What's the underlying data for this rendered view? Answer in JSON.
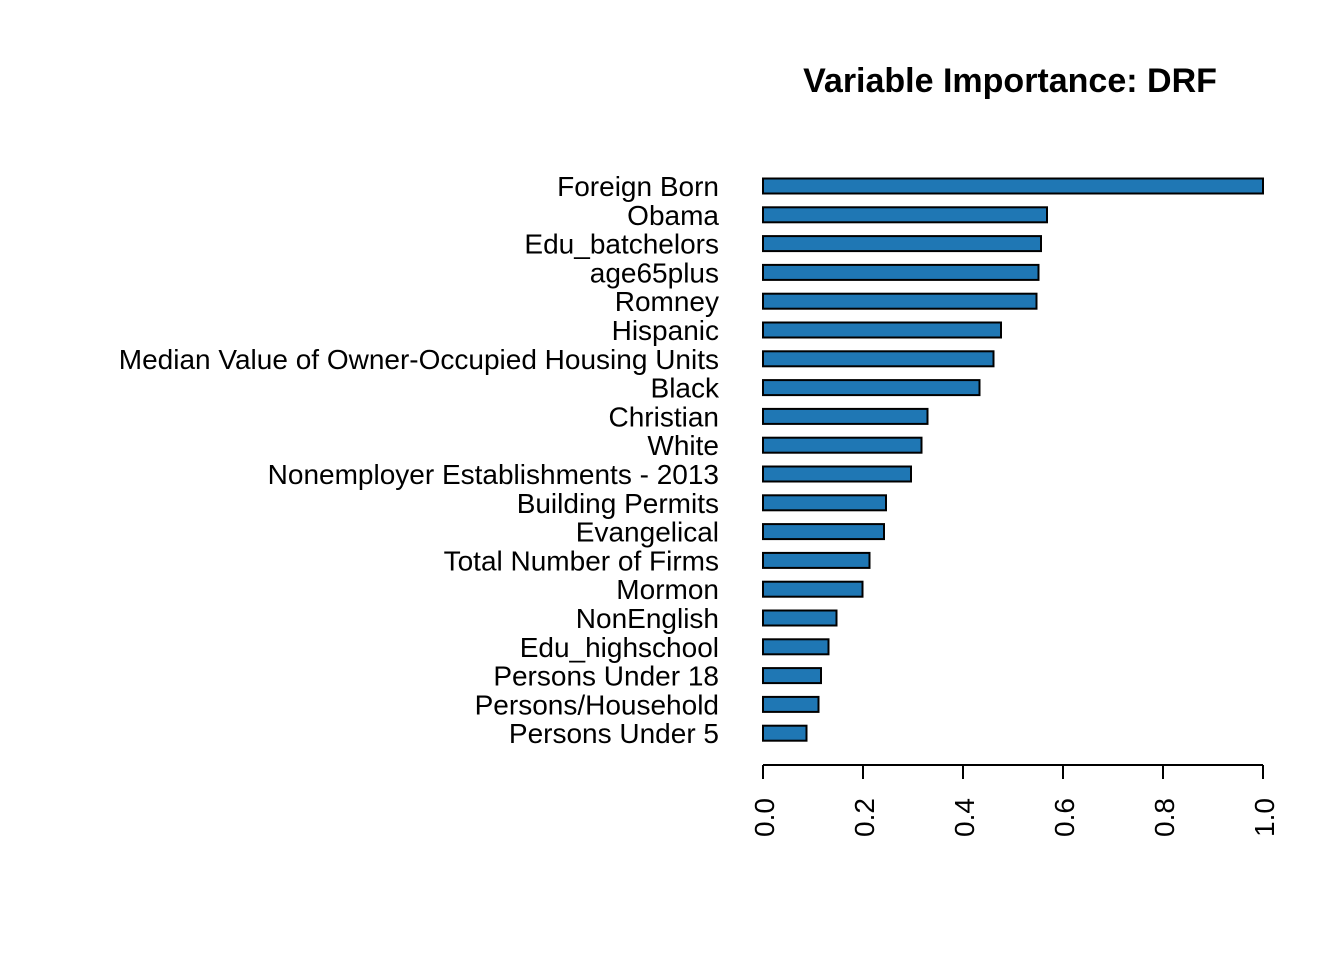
{
  "chart_data": {
    "type": "bar",
    "orientation": "horizontal",
    "title": "Variable Importance: DRF",
    "xlabel": "",
    "ylabel": "",
    "categories": [
      "Foreign Born",
      "Obama",
      "Edu_batchelors",
      "age65plus",
      "Romney",
      "Hispanic",
      "Median Value of Owner-Occupied Housing Units",
      "Black",
      "Christian",
      "White",
      "Nonemployer Establishments - 2013",
      "Building Permits",
      "Evangelical",
      "Total Number of Firms",
      "Mormon",
      "NonEnglish",
      "Edu_highschool",
      "Persons Under 18",
      "Persons/Household",
      "Persons Under 5"
    ],
    "values": [
      1.0,
      0.568,
      0.556,
      0.551,
      0.547,
      0.476,
      0.461,
      0.433,
      0.329,
      0.317,
      0.296,
      0.246,
      0.242,
      0.213,
      0.199,
      0.147,
      0.131,
      0.116,
      0.111,
      0.087
    ],
    "xlim": [
      0,
      1
    ],
    "xticks": [
      0.0,
      0.2,
      0.4,
      0.6,
      0.8,
      1.0
    ],
    "xtick_labels": [
      "0.0",
      "0.2",
      "0.4",
      "0.6",
      "0.8",
      "1.0"
    ],
    "grid": false,
    "legend": "none",
    "bar_color": "#1F77B4",
    "bar_edge_color": "#000000"
  }
}
